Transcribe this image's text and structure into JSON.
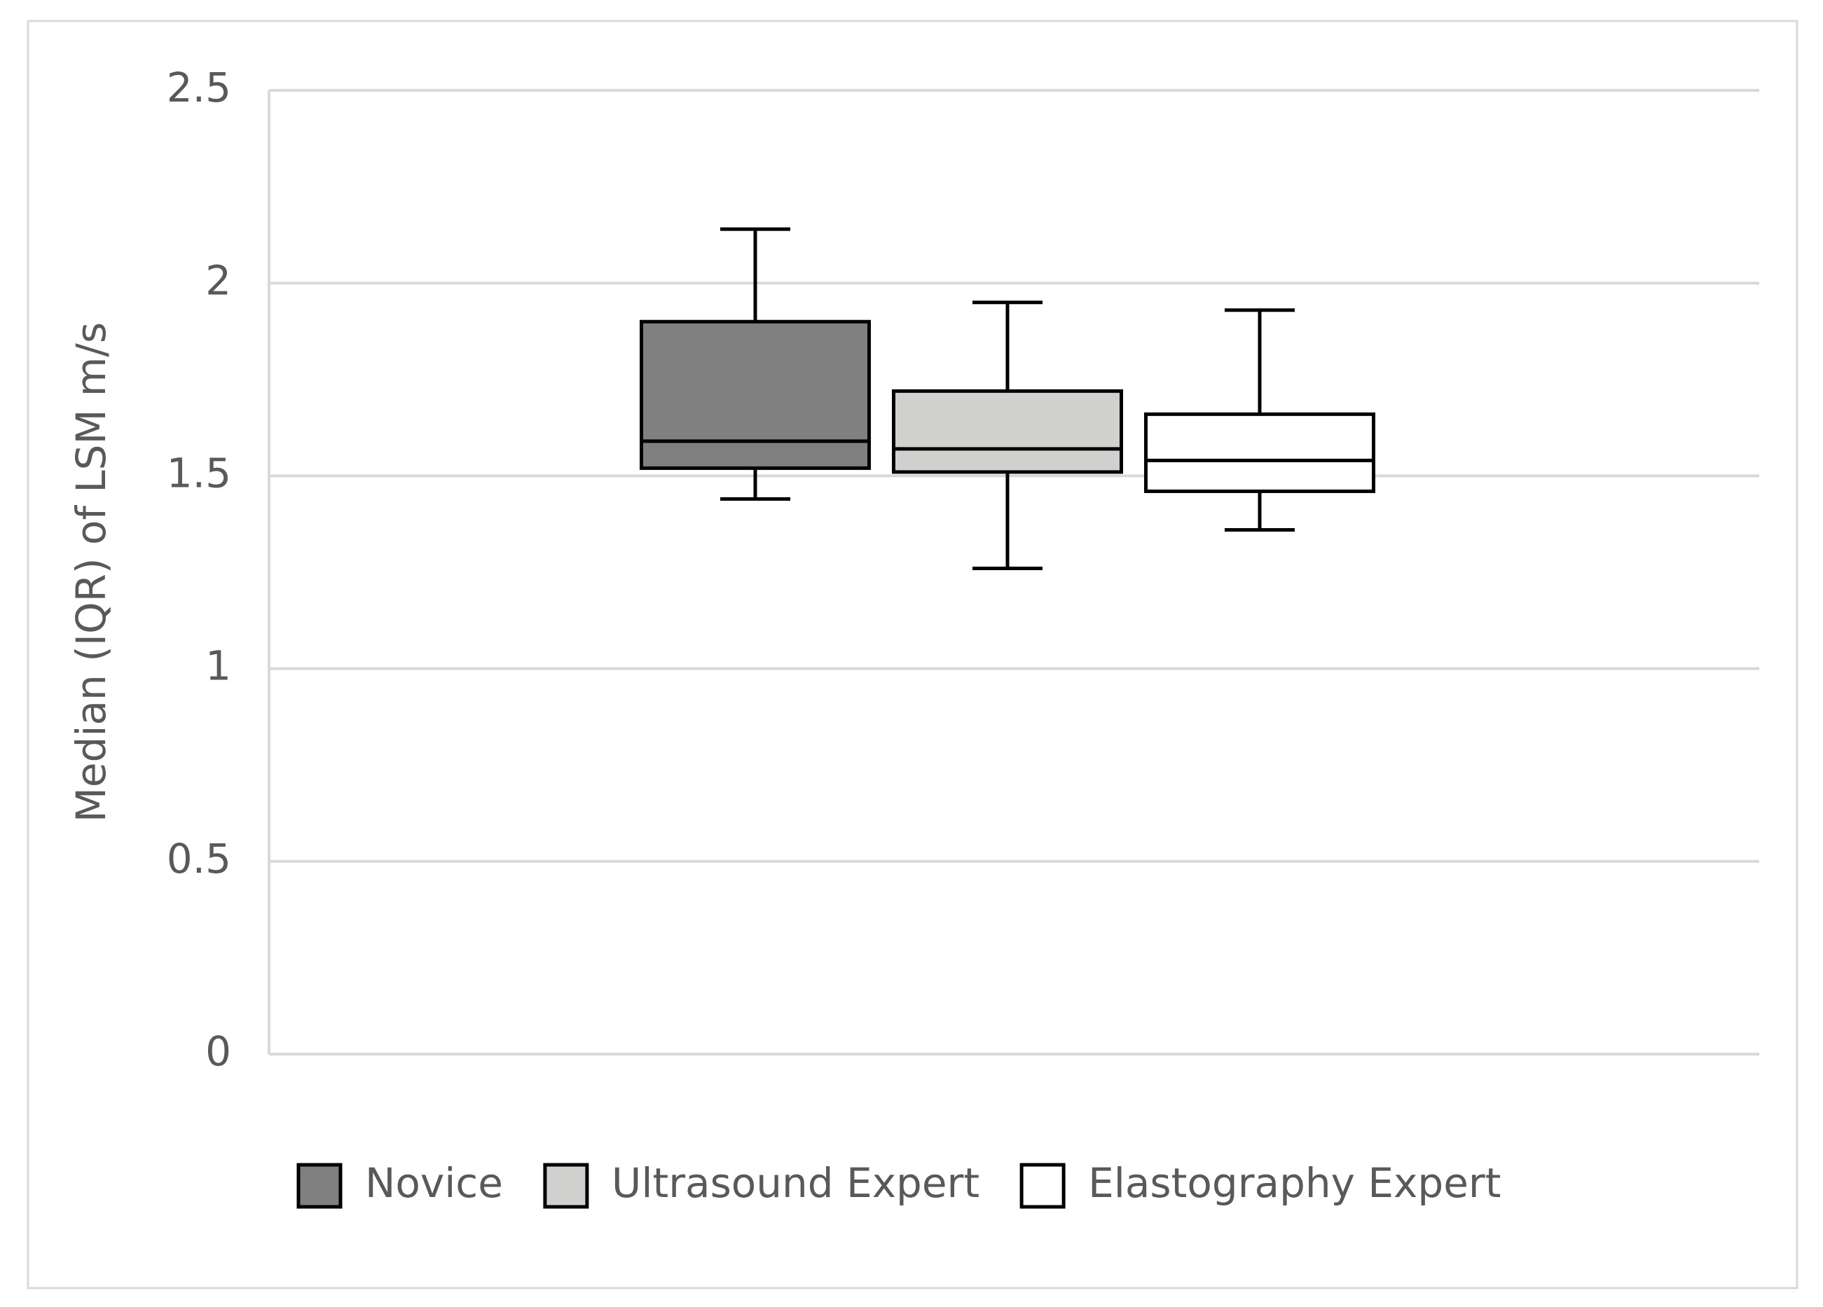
{
  "chart_data": {
    "type": "box",
    "y_label": "Median (IQR) of LSM m/s",
    "ylim": [
      0,
      2.5
    ],
    "yticks": [
      0,
      0.5,
      1,
      1.5,
      2,
      2.5
    ],
    "grid": true,
    "legend": "bottom",
    "series": [
      {
        "name": "Novice",
        "color": "#808080",
        "min": 1.44,
        "q1": 1.52,
        "median": 1.59,
        "q3": 1.9,
        "max": 2.14
      },
      {
        "name": "Ultrasound Expert",
        "color": "#d0d0ce",
        "min": 1.26,
        "q1": 1.51,
        "median": 1.57,
        "q3": 1.72,
        "max": 1.95
      },
      {
        "name": "Elastography Expert",
        "color": "#ffffff",
        "min": 1.36,
        "q1": 1.46,
        "median": 1.54,
        "q3": 1.66,
        "max": 1.93
      }
    ]
  }
}
